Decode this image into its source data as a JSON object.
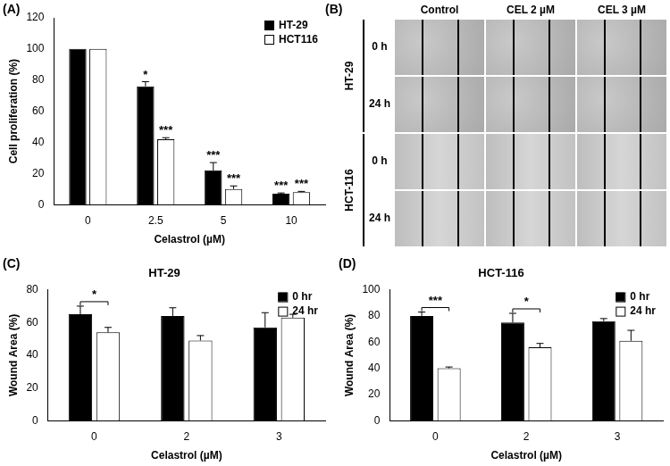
{
  "chart_data": [
    {
      "type": "bar",
      "panel_label": "(A)",
      "categories": [
        "0",
        "2.5",
        "5",
        "10"
      ],
      "x_label": "Celastrol (µM)",
      "y_label": "Cell proliferation (%)",
      "series": [
        {
          "name": "HT-29",
          "color": "#000000",
          "values": [
            100,
            76,
            22,
            7
          ],
          "errors": [
            0,
            3,
            5,
            0.5
          ],
          "significance": [
            null,
            "*",
            "***",
            "***"
          ]
        },
        {
          "name": "HCT116",
          "color": "#ffffff",
          "values": [
            100,
            42,
            10,
            8
          ],
          "errors": [
            0,
            1,
            2,
            0.5
          ],
          "significance": [
            null,
            "***",
            "***",
            "***"
          ]
        }
      ],
      "ylim": [
        0,
        120
      ],
      "yticks": [
        0,
        20,
        40,
        60,
        80,
        100,
        120
      ],
      "grid": false,
      "legend": "upper right"
    },
    {
      "type": "bar",
      "panel_label": "(C)",
      "title": "HT-29",
      "categories": [
        "0",
        "2",
        "3"
      ],
      "x_label": "Celastrol (µM)",
      "y_label": "Wound Area (%)",
      "series": [
        {
          "name": "0 hr",
          "color": "#000000",
          "values": [
            65,
            64,
            57
          ],
          "errors": [
            5,
            5,
            9
          ]
        },
        {
          "name": "24 hr",
          "color": "#ffffff",
          "values": [
            54,
            49,
            63
          ],
          "errors": [
            3,
            3,
            2
          ]
        }
      ],
      "brackets": [
        {
          "category": "0",
          "text": "*"
        }
      ],
      "ylim": [
        0,
        80
      ],
      "yticks": [
        0,
        20,
        40,
        60,
        80
      ],
      "grid": false,
      "legend": "upper right"
    },
    {
      "type": "bar",
      "panel_label": "(D)",
      "title": "HCT-116",
      "categories": [
        "0",
        "2",
        "3"
      ],
      "x_label": "Celastrol (µM)",
      "y_label": "Wound Area (%)",
      "series": [
        {
          "name": "0 hr",
          "color": "#000000",
          "values": [
            80,
            75,
            76
          ],
          "errors": [
            3,
            7,
            2
          ]
        },
        {
          "name": "24 hr",
          "color": "#ffffff",
          "values": [
            40,
            56,
            61
          ],
          "errors": [
            1,
            3,
            8
          ]
        }
      ],
      "brackets": [
        {
          "category": "0",
          "text": "***"
        },
        {
          "category": "2",
          "text": "*"
        }
      ],
      "ylim": [
        0,
        100
      ],
      "yticks": [
        0,
        20,
        40,
        60,
        80,
        100
      ],
      "grid": false,
      "legend": "upper right"
    }
  ],
  "image_panel": {
    "panel_label": "(B)",
    "columns": [
      "Control",
      "CEL 2 µM",
      "CEL 3 µM"
    ],
    "row_groups": [
      {
        "label": "HT-29",
        "rows": [
          "0 h",
          "24 h"
        ]
      },
      {
        "label": "HCT-116",
        "rows": [
          "0 h",
          "24 h"
        ]
      }
    ]
  }
}
